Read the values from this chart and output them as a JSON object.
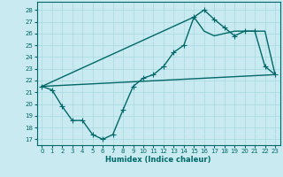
{
  "xlabel": "Humidex (Indice chaleur)",
  "bg_color": "#c8eaf0",
  "line_color": "#006868",
  "grid_color": "#a8d8e0",
  "ylim": [
    16.5,
    28.7
  ],
  "xlim": [
    -0.5,
    23.5
  ],
  "yticks": [
    17,
    18,
    19,
    20,
    21,
    22,
    23,
    24,
    25,
    26,
    27,
    28
  ],
  "xticks": [
    0,
    1,
    2,
    3,
    4,
    5,
    6,
    7,
    8,
    9,
    10,
    11,
    12,
    13,
    14,
    15,
    16,
    17,
    18,
    19,
    20,
    21,
    22,
    23
  ],
  "line1_x": [
    0,
    1,
    2,
    3,
    4,
    5,
    6,
    7,
    8,
    9,
    10,
    11,
    12,
    13,
    14,
    15,
    16,
    17,
    18,
    19,
    20,
    21,
    22,
    23
  ],
  "line1_y": [
    21.5,
    21.2,
    19.8,
    18.6,
    18.6,
    17.4,
    17.0,
    17.4,
    19.5,
    21.5,
    22.2,
    22.5,
    23.2,
    24.4,
    25.0,
    27.4,
    28.0,
    27.2,
    26.5,
    25.8,
    26.2,
    26.2,
    23.2,
    22.5
  ],
  "line2_x": [
    0,
    15,
    16,
    17,
    18,
    19,
    20,
    21,
    22,
    23
  ],
  "line2_y": [
    21.5,
    27.4,
    26.2,
    25.8,
    26.0,
    26.2,
    26.2,
    26.2,
    26.2,
    22.5
  ],
  "line3_x": [
    0,
    23
  ],
  "line3_y": [
    21.5,
    22.5
  ],
  "marker": "+",
  "markersize": 4,
  "linewidth": 1.0
}
